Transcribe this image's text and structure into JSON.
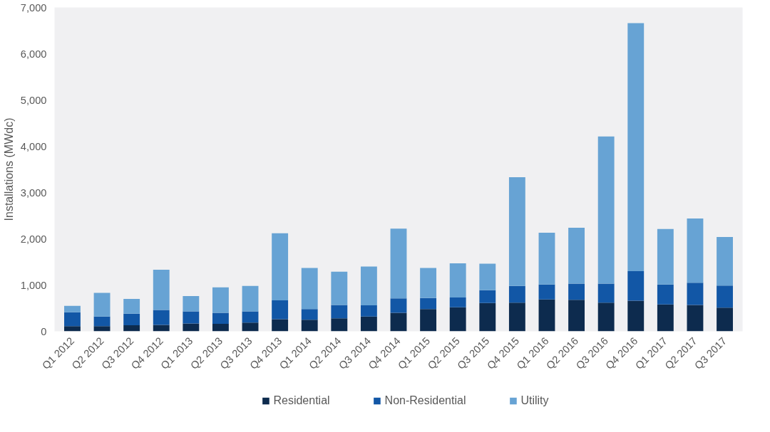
{
  "chart_data": {
    "type": "bar",
    "stacked": true,
    "ylabel": "Installations (MWdc)",
    "categories": [
      "Q1 2012",
      "Q2 2012",
      "Q3 2012",
      "Q4 2012",
      "Q1 2013",
      "Q2 2013",
      "Q3 2013",
      "Q4 2013",
      "Q1 2014",
      "Q2 2014",
      "Q3 2014",
      "Q4 2014",
      "Q1 2015",
      "Q2 2015",
      "Q3 2015",
      "Q4 2015",
      "Q1 2016",
      "Q2 2016",
      "Q3 2016",
      "Q4 2016",
      "Q1 2017",
      "Q2 2017",
      "Q3 2017"
    ],
    "series": [
      {
        "name": "Residential",
        "color": "#0d2b4e",
        "values": [
          110,
          110,
          130,
          140,
          170,
          160,
          190,
          260,
          250,
          280,
          320,
          400,
          480,
          520,
          610,
          620,
          690,
          680,
          620,
          660,
          580,
          570,
          510
        ]
      },
      {
        "name": "Non-Residential",
        "color": "#1257a6",
        "values": [
          300,
          210,
          250,
          320,
          260,
          240,
          240,
          410,
          230,
          290,
          240,
          310,
          240,
          210,
          280,
          360,
          320,
          350,
          410,
          640,
          430,
          480,
          480
        ]
      },
      {
        "name": "Utility",
        "color": "#67a3d4",
        "values": [
          140,
          510,
          320,
          870,
          330,
          550,
          550,
          1450,
          890,
          720,
          840,
          1510,
          650,
          740,
          570,
          2350,
          1120,
          1210,
          3180,
          5360,
          1200,
          1390,
          1050
        ]
      }
    ],
    "ylim": [
      0,
      7000
    ],
    "yticks": [
      {
        "value": 0,
        "label": "0"
      },
      {
        "value": 1000,
        "label": "1,000"
      },
      {
        "value": 2000,
        "label": "2,000"
      },
      {
        "value": 3000,
        "label": "3,000"
      },
      {
        "value": 4000,
        "label": "4,000"
      },
      {
        "value": 5000,
        "label": "5,000"
      },
      {
        "value": 6000,
        "label": "6,000"
      },
      {
        "value": 7000,
        "label": "7,000"
      }
    ],
    "grid": false,
    "legend": "bottom"
  }
}
